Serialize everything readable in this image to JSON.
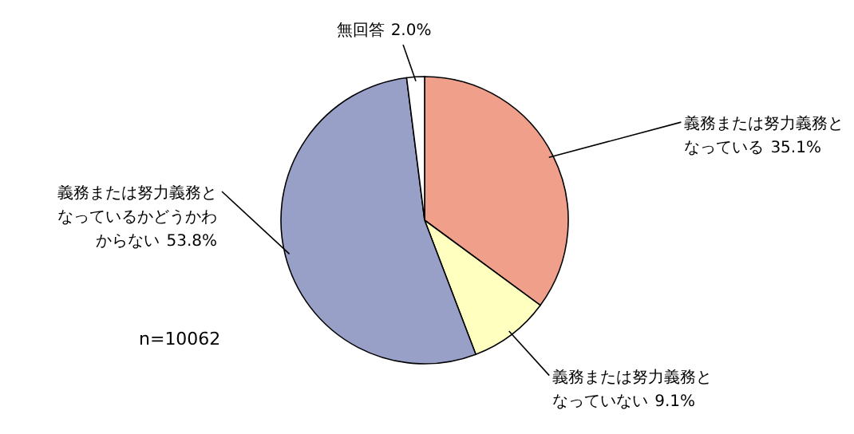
{
  "chart_data": {
    "type": "pie",
    "categories": [
      "義務または努力義務となっている",
      "義務または努力義務となっていない",
      "義務または努力義務となっているかどうかわからない",
      "無回答"
    ],
    "values": [
      35.1,
      9.1,
      53.8,
      2.0
    ],
    "value_labels": [
      "35.1%",
      "9.1%",
      "53.8%",
      "2.0%"
    ],
    "colors": [
      "#f0a08a",
      "#ffffc0",
      "#99a0c8",
      "#ffffff"
    ],
    "annotations": [
      "n=10062"
    ]
  }
}
